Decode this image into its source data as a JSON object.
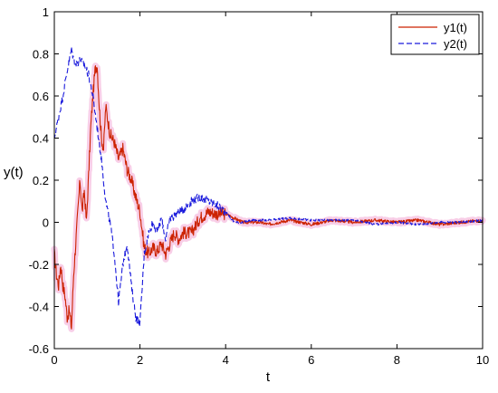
{
  "chart_data": {
    "type": "line",
    "title": "",
    "xlabel": "t",
    "ylabel": "y(t)",
    "xlim": [
      0,
      10
    ],
    "ylim": [
      -0.6,
      1
    ],
    "xticks": [
      "0",
      "2",
      "4",
      "6",
      "8",
      "10"
    ],
    "yticks": [
      "-0.6",
      "-0.4",
      "-0.2",
      "0",
      "0.2",
      "0.4",
      "0.6",
      "0.8",
      "1"
    ],
    "grid": false,
    "legend_position": "top-right",
    "series": [
      {
        "name": "y1(t)",
        "color": "#cc2200",
        "band_color": "#f7c9e4",
        "style": "solid",
        "x": [
          0,
          0.05,
          0.1,
          0.15,
          0.2,
          0.25,
          0.3,
          0.35,
          0.4,
          0.45,
          0.5,
          0.55,
          0.6,
          0.65,
          0.7,
          0.75,
          0.8,
          0.85,
          0.9,
          0.95,
          1.0,
          1.05,
          1.1,
          1.15,
          1.2,
          1.3,
          1.4,
          1.5,
          1.6,
          1.7,
          1.8,
          1.9,
          2.0,
          2.1,
          2.2,
          2.3,
          2.4,
          2.5,
          2.6,
          2.7,
          2.8,
          2.9,
          3.0,
          3.2,
          3.4,
          3.6,
          3.8,
          4.0,
          4.2,
          4.4,
          4.6,
          4.8,
          5.0,
          5.5,
          6.0,
          6.5,
          7.0,
          7.5,
          8.0,
          8.5,
          9.0,
          9.5,
          10.0
        ],
        "values": [
          -0.15,
          -0.25,
          -0.3,
          -0.2,
          -0.3,
          -0.35,
          -0.45,
          -0.42,
          -0.5,
          -0.25,
          -0.1,
          0.05,
          0.2,
          0.05,
          0.15,
          0.0,
          0.22,
          0.45,
          0.6,
          0.72,
          0.75,
          0.55,
          0.4,
          0.35,
          0.55,
          0.42,
          0.38,
          0.3,
          0.35,
          0.25,
          0.2,
          0.12,
          0.05,
          -0.12,
          -0.15,
          -0.12,
          -0.14,
          -0.1,
          -0.15,
          -0.1,
          -0.05,
          -0.08,
          -0.05,
          -0.05,
          0.02,
          0.05,
          0.04,
          0.04,
          0.02,
          0.0,
          0.0,
          0.0,
          -0.01,
          0.01,
          -0.01,
          0.01,
          0.0,
          0.01,
          0.0,
          0.01,
          -0.01,
          0.0,
          0.01
        ]
      },
      {
        "name": "y2(t)",
        "color": "#1a1adc",
        "style": "dashed",
        "x": [
          0,
          0.1,
          0.2,
          0.3,
          0.4,
          0.45,
          0.5,
          0.6,
          0.7,
          0.8,
          0.9,
          1.0,
          1.1,
          1.2,
          1.3,
          1.4,
          1.5,
          1.6,
          1.7,
          1.8,
          1.9,
          2.0,
          2.1,
          2.2,
          2.3,
          2.4,
          2.5,
          2.6,
          2.7,
          2.8,
          2.9,
          3.0,
          3.2,
          3.4,
          3.6,
          3.8,
          4.0,
          4.2,
          4.4,
          4.6,
          4.8,
          5.0,
          5.5,
          6.0,
          6.5,
          7.0,
          7.5,
          8.0,
          8.5,
          9.0,
          9.5,
          10.0
        ],
        "values": [
          0.4,
          0.5,
          0.6,
          0.72,
          0.82,
          0.78,
          0.75,
          0.77,
          0.75,
          0.7,
          0.6,
          0.45,
          0.3,
          0.1,
          0.0,
          -0.15,
          -0.38,
          -0.2,
          -0.1,
          -0.3,
          -0.45,
          -0.48,
          -0.15,
          -0.05,
          0.0,
          -0.05,
          0.02,
          -0.08,
          0.02,
          0.03,
          0.05,
          0.06,
          0.1,
          0.12,
          0.1,
          0.08,
          0.05,
          0.0,
          0.0,
          0.01,
          0.01,
          0.01,
          0.02,
          0.01,
          0.01,
          0.01,
          -0.01,
          0.0,
          -0.01,
          0.0,
          0.0,
          0.01
        ]
      }
    ]
  }
}
